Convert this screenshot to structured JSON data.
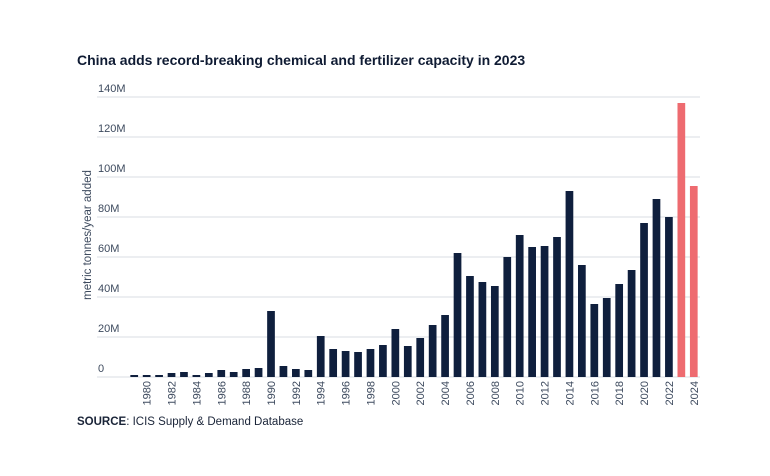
{
  "title": "China adds record-breaking chemical and fertilizer capacity in 2023",
  "source": {
    "label": "SOURCE",
    "text": ": ICIS Supply & Demand Database"
  },
  "colors": {
    "bar": "#0f1f3d",
    "highlight": "#ee6b70",
    "grid": "#d9dde3"
  },
  "chart_data": {
    "type": "bar",
    "title": "China adds record-breaking chemical and fertilizer capacity in 2023",
    "xlabel": "",
    "ylabel": "metric tonnes/year added",
    "ylim": [
      0,
      140
    ],
    "yticks": [
      0,
      20,
      40,
      60,
      80,
      100,
      120,
      140
    ],
    "ytick_labels": [
      "0",
      "20M",
      "40M",
      "60M",
      "80M",
      "100M",
      "120M",
      "140M"
    ],
    "categories": [
      "1979",
      "1980",
      "1981",
      "1982",
      "1983",
      "1984",
      "1985",
      "1986",
      "1987",
      "1988",
      "1989",
      "1990",
      "1991",
      "1992",
      "1993",
      "1994",
      "1995",
      "1996",
      "1997",
      "1998",
      "1999",
      "2000",
      "2001",
      "2002",
      "2003",
      "2004",
      "2005",
      "2006",
      "2007",
      "2008",
      "2009",
      "2010",
      "2011",
      "2012",
      "2013",
      "2014",
      "2015",
      "2016",
      "2017",
      "2018",
      "2019",
      "2020",
      "2021",
      "2022",
      "2023",
      "2024"
    ],
    "xtick_labels": [
      "1980",
      "1982",
      "1984",
      "1986",
      "1988",
      "1990",
      "1992",
      "1994",
      "1996",
      "1998",
      "2000",
      "2002",
      "2004",
      "2006",
      "2008",
      "2010",
      "2012",
      "2014",
      "2016",
      "2018",
      "2020",
      "2022",
      "2024"
    ],
    "values": [
      1,
      1,
      1,
      2,
      2.5,
      1,
      2,
      3.5,
      2.5,
      4,
      4.5,
      33,
      5.5,
      4,
      3.5,
      20.5,
      14,
      13,
      12.5,
      14,
      16,
      24,
      15.5,
      19.5,
      26,
      31,
      62,
      50.5,
      47.5,
      45.5,
      60,
      71,
      65,
      65.5,
      70,
      93,
      56,
      36.5,
      39.5,
      46.5,
      53.5,
      77,
      89,
      80,
      137,
      95.5
    ],
    "highlight_categories": [
      "2023",
      "2024"
    ],
    "grid": true
  }
}
